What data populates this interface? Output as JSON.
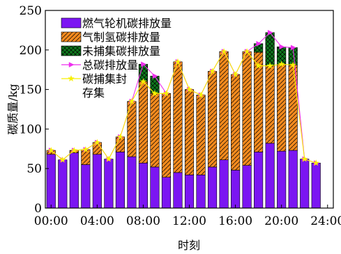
{
  "chart_data": {
    "type": "bar",
    "stacked": true,
    "x": [
      0,
      1,
      2,
      3,
      4,
      5,
      6,
      7,
      8,
      9,
      10,
      11,
      12,
      13,
      14,
      15,
      16,
      17,
      18,
      19,
      20,
      21,
      22,
      23,
      24
    ],
    "xlabel": "时刻",
    "ylabel": "碳质量/kg",
    "ylim": [
      0,
      250
    ],
    "xlim": [
      -0.5,
      24.5
    ],
    "yticks": [
      0,
      50,
      100,
      150,
      200,
      250
    ],
    "xticks": [
      0,
      4,
      8,
      12,
      16,
      20,
      24
    ],
    "xtick_labels": [
      "00:00",
      "04:00",
      "08:00",
      "12:00",
      "16:00",
      "20:00",
      "24:00"
    ],
    "legend_position": "top-left",
    "series": [
      {
        "name": "燃气轮机碳排放量",
        "kind": "bar",
        "color": "#7b16f2",
        "pattern": "none",
        "values": [
          68,
          61,
          70,
          55,
          68,
          62,
          71,
          65,
          57,
          52,
          39,
          45,
          42,
          42,
          52,
          61,
          48,
          54,
          71,
          82,
          72,
          73,
          62,
          57,
          0
        ]
      },
      {
        "name": "气制氢碳排放量",
        "kind": "bar",
        "color": "#f28a1e",
        "pattern": "hatch",
        "values": [
          5,
          0,
          3,
          19,
          15,
          0,
          19,
          70,
          103,
          93,
          106,
          140,
          108,
          101,
          121,
          137,
          121,
          144,
          126,
          98,
          110,
          108,
          0,
          0,
          0
        ]
      },
      {
        "name": "未捕集碳排放量",
        "kind": "bar",
        "color": "#0f7a1e",
        "pattern": "cross",
        "values": [
          0,
          0,
          0,
          0,
          0,
          0,
          0,
          0,
          22,
          22,
          0,
          0,
          0,
          0,
          0,
          0,
          0,
          0,
          11,
          42,
          22,
          22,
          0,
          0,
          0
        ]
      },
      {
        "name": "总碳排放量",
        "kind": "line",
        "color": "#ee2fee",
        "marker": "triangle-right",
        "values": [
          73,
          61,
          73,
          74,
          83,
          62,
          90,
          135,
          182,
          167,
          145,
          185,
          150,
          143,
          173,
          198,
          169,
          198,
          208,
          222,
          204,
          203,
          62,
          57,
          null
        ]
      },
      {
        "name": "碳捕集封存集",
        "kind": "line",
        "color": "#f7f000",
        "marker": "star",
        "values": [
          73,
          61,
          73,
          74,
          83,
          62,
          90,
          135,
          160,
          145,
          145,
          185,
          150,
          143,
          173,
          198,
          169,
          198,
          180,
          180,
          182,
          181,
          62,
          57,
          null
        ]
      }
    ]
  }
}
